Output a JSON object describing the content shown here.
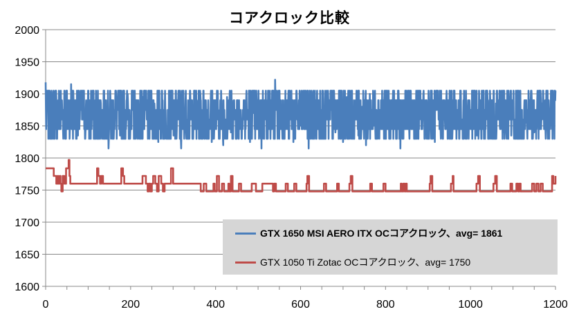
{
  "chart_data": {
    "type": "line",
    "title": "コアクロック比較",
    "xlabel": "",
    "ylabel": "",
    "xlim": [
      0,
      1200
    ],
    "ylim": [
      1600,
      2000
    ],
    "xticks": [
      "0",
      "200",
      "400",
      "600",
      "800",
      "1000",
      "1200"
    ],
    "yticks": [
      "1600",
      "1650",
      "1700",
      "1750",
      "1800",
      "1850",
      "1900",
      "1950",
      "2000"
    ],
    "grid": "horizontal",
    "legend_placement": "bottom-right",
    "series": [
      {
        "name": "GTX 1650 MSI AERO ITX OCコアクロック、avg= 1861",
        "color": "#4a7ebb",
        "average": 1861,
        "min": 1815,
        "max": 1922,
        "levels": [
          1830,
          1845,
          1860,
          1875,
          1890,
          1905
        ],
        "x": [
          0,
          3,
          7,
          12,
          18,
          24,
          30,
          37,
          44,
          52,
          60,
          68,
          76,
          85,
          94,
          103,
          112,
          121,
          130,
          139,
          148,
          157,
          166,
          175,
          184,
          193,
          202,
          211,
          220,
          229,
          238,
          247,
          256,
          265,
          274,
          283,
          292,
          301,
          310,
          319,
          328,
          337,
          346,
          355,
          364,
          373,
          382,
          391,
          400,
          409,
          418,
          427,
          436,
          445,
          454,
          463,
          472,
          481,
          490,
          499,
          508,
          517,
          526,
          535,
          540,
          548,
          556,
          565,
          574,
          583,
          592,
          601,
          610,
          619,
          628,
          637,
          646,
          655,
          664,
          673,
          682,
          691,
          700,
          709,
          718,
          727,
          736,
          745,
          754,
          763,
          772,
          781,
          790,
          799,
          808,
          817,
          826,
          835,
          844,
          853,
          862,
          871,
          880,
          889,
          898,
          907,
          916,
          925,
          934,
          943,
          952,
          961,
          970,
          979,
          988,
          997,
          1006,
          1015,
          1024,
          1033,
          1042,
          1051,
          1060,
          1069,
          1078,
          1087,
          1096,
          1105,
          1114,
          1123,
          1132,
          1141,
          1150,
          1159,
          1168,
          1177,
          1186,
          1195,
          1200
        ],
        "y": [
          1918,
          1880,
          1905,
          1860,
          1900,
          1845,
          1890,
          1870,
          1905,
          1850,
          1915,
          1860,
          1835,
          1890,
          1845,
          1875,
          1905,
          1830,
          1885,
          1850,
          1815,
          1875,
          1890,
          1835,
          1860,
          1900,
          1845,
          1870,
          1830,
          1895,
          1860,
          1850,
          1885,
          1825,
          1905,
          1845,
          1870,
          1835,
          1890,
          1815,
          1875,
          1850,
          1860,
          1830,
          1900,
          1845,
          1870,
          1825,
          1885,
          1850,
          1820,
          1895,
          1840,
          1875,
          1830,
          1860,
          1890,
          1825,
          1870,
          1845,
          1815,
          1880,
          1850,
          1860,
          1922,
          1835,
          1870,
          1845,
          1890,
          1825,
          1860,
          1850,
          1885,
          1815,
          1870,
          1845,
          1905,
          1830,
          1860,
          1885,
          1840,
          1870,
          1825,
          1895,
          1850,
          1860,
          1835,
          1880,
          1820,
          1900,
          1850,
          1840,
          1875,
          1830,
          1860,
          1890,
          1845,
          1815,
          1870,
          1855,
          1885,
          1830,
          1860,
          1900,
          1840,
          1875,
          1825,
          1860,
          1850,
          1890,
          1835,
          1870,
          1845,
          1860,
          1830,
          1880,
          1850,
          1835,
          1870,
          1845,
          1860,
          1830,
          1885,
          1850,
          1840,
          1870,
          1835,
          1860,
          1880,
          1830,
          1855,
          1875,
          1840,
          1860,
          1885,
          1830,
          1870,
          1850,
          1905
        ]
      },
      {
        "name": "GTX 1050 Ti Zotac OCコアクロック、avg= 1750",
        "color": "#be4b48",
        "average": 1750,
        "min": 1747,
        "max": 1797,
        "x": [
          0,
          18,
          19,
          22,
          25,
          28,
          30,
          33,
          35,
          37,
          40,
          44,
          48,
          52,
          54,
          56,
          58,
          60,
          100,
          118,
          121,
          124,
          128,
          131,
          135,
          175,
          178,
          182,
          185,
          215,
          228,
          236,
          240,
          243,
          246,
          250,
          253,
          258,
          262,
          266,
          272,
          276,
          280,
          288,
          295,
          300,
          350,
          360,
          365,
          368,
          372,
          378,
          390,
          395,
          398,
          403,
          408,
          415,
          420,
          425,
          430,
          432,
          436,
          440,
          448,
          455,
          460,
          470,
          480,
          485,
          495,
          505,
          510,
          535,
          538,
          542,
          560,
          565,
          570,
          582,
          585,
          590,
          600,
          610,
          614,
          616,
          620,
          650,
          655,
          660,
          680,
          686,
          690,
          700,
          712,
          715,
          718,
          722,
          760,
          764,
          768,
          772,
          790,
          795,
          800,
          830,
          834,
          836,
          838,
          842,
          845,
          848,
          850,
          900,
          904,
          906,
          910,
          950,
          954,
          958,
          960,
          1010,
          1014,
          1018,
          1022,
          1050,
          1054,
          1058,
          1062,
          1090,
          1094,
          1098,
          1102,
          1108,
          1112,
          1115,
          1118,
          1140,
          1145,
          1150,
          1155,
          1160,
          1165,
          1170,
          1190,
          1192,
          1195,
          1200
        ],
        "y": [
          1784,
          1784,
          1772,
          1772,
          1760,
          1772,
          1760,
          1772,
          1760,
          1748,
          1772,
          1760,
          1784,
          1784,
          1797,
          1772,
          1760,
          1760,
          1760,
          1760,
          1784,
          1772,
          1760,
          1772,
          1760,
          1760,
          1784,
          1772,
          1760,
          1760,
          1772,
          1760,
          1748,
          1760,
          1748,
          1760,
          1772,
          1760,
          1748,
          1772,
          1760,
          1748,
          1760,
          1760,
          1784,
          1760,
          1760,
          1760,
          1748,
          1748,
          1760,
          1748,
          1748,
          1760,
          1748,
          1772,
          1748,
          1760,
          1748,
          1748,
          1760,
          1748,
          1772,
          1748,
          1748,
          1760,
          1748,
          1748,
          1748,
          1760,
          1748,
          1748,
          1760,
          1748,
          1760,
          1748,
          1748,
          1760,
          1748,
          1748,
          1760,
          1748,
          1748,
          1748,
          1760,
          1772,
          1748,
          1748,
          1760,
          1748,
          1748,
          1760,
          1748,
          1748,
          1748,
          1760,
          1772,
          1748,
          1748,
          1760,
          1748,
          1748,
          1748,
          1760,
          1748,
          1748,
          1748,
          1760,
          1748,
          1760,
          1748,
          1760,
          1748,
          1748,
          1760,
          1772,
          1748,
          1748,
          1760,
          1772,
          1748,
          1748,
          1760,
          1772,
          1748,
          1748,
          1760,
          1772,
          1748,
          1748,
          1760,
          1748,
          1748,
          1760,
          1748,
          1760,
          1748,
          1748,
          1760,
          1748,
          1760,
          1748,
          1760,
          1748,
          1748,
          1772,
          1760,
          1772
        ]
      }
    ]
  }
}
